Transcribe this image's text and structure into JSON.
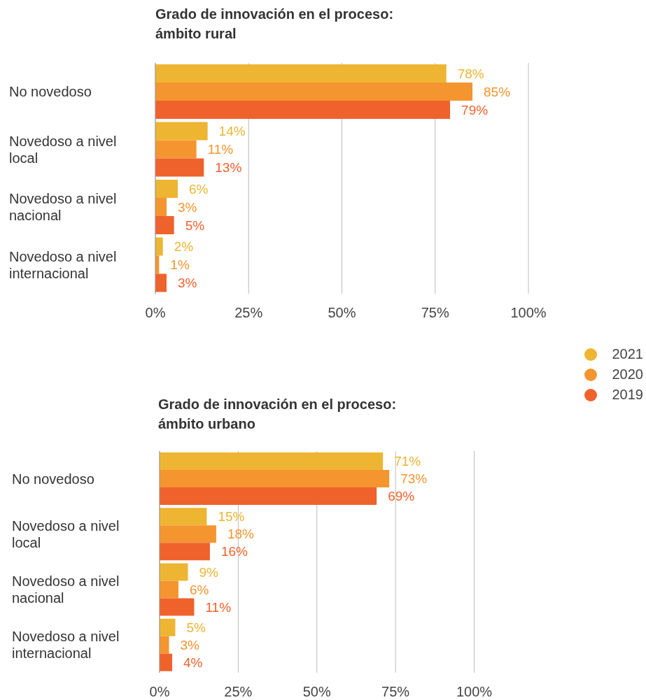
{
  "chart_data": [
    {
      "type": "bar",
      "orientation": "horizontal",
      "title": "Grado de innovación en el proceso: ámbito rural",
      "categories": [
        "No novedoso",
        "Novedoso a nivel local",
        "Novedoso a nivel nacional",
        "Novedoso a nivel internacional"
      ],
      "series": [
        {
          "color": "#edb531",
          "values": [
            78,
            14,
            6,
            2
          ],
          "value_labels": [
            "78%",
            "14%",
            "6%",
            "2%"
          ]
        },
        {
          "color": "#f4952f",
          "values": [
            85,
            11,
            3,
            1
          ],
          "value_labels": [
            "85%",
            "11%",
            "3%",
            "1%"
          ]
        },
        {
          "color": "#f0622c",
          "values": [
            79,
            13,
            5,
            3
          ],
          "value_labels": [
            "79%",
            "13%",
            "5%",
            "3%"
          ]
        }
      ],
      "xlim": [
        0,
        100
      ],
      "xticks": [
        {
          "value": 0,
          "label": "0%"
        },
        {
          "value": 25,
          "label": "25%"
        },
        {
          "value": 50,
          "label": "50%"
        },
        {
          "value": 75,
          "label": "75%"
        },
        {
          "value": 100,
          "label": "100%"
        }
      ],
      "grid": "x",
      "legend": false
    },
    {
      "type": "bar",
      "orientation": "horizontal",
      "title": "Grado de innovación en el proceso: ámbito urbano",
      "categories": [
        "No novedoso",
        "Novedoso a nivel local",
        "Novedoso a nivel nacional",
        "Novedoso a nivel internacional"
      ],
      "series": [
        {
          "name": "2021",
          "color": "#edb531",
          "values": [
            71,
            15,
            9,
            5
          ],
          "value_labels": [
            "71%",
            "15%",
            "9%",
            "5%"
          ]
        },
        {
          "name": "2020",
          "color": "#f4952f",
          "values": [
            73,
            18,
            6,
            3
          ],
          "value_labels": [
            "73%",
            "18%",
            "6%",
            "3%"
          ]
        },
        {
          "name": "2019",
          "color": "#f0622c",
          "values": [
            69,
            16,
            11,
            4
          ],
          "value_labels": [
            "69%",
            "16%",
            "11%",
            "4%"
          ]
        }
      ],
      "xlim": [
        0,
        100
      ],
      "xticks": [
        {
          "value": 0,
          "label": "0%"
        },
        {
          "value": 25,
          "label": "25%"
        },
        {
          "value": 50,
          "label": "50%"
        },
        {
          "value": 75,
          "label": "75%"
        },
        {
          "value": 100,
          "label": "100%"
        }
      ],
      "grid": "x",
      "legend": "top right"
    }
  ]
}
